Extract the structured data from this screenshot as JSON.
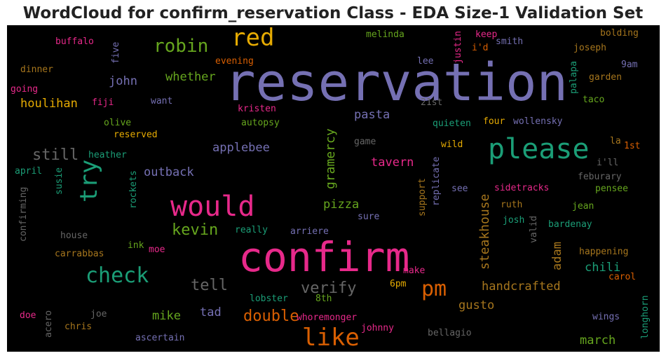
{
  "title": "WordCloud for confirm_reservation Class - EDA Size-1 Validation Set",
  "chart_data": {
    "type": "wordcloud",
    "title": "WordCloud for confirm_reservation Class - EDA Size-1 Validation Set",
    "background": "#000000",
    "colormap": [
      "#7570b3",
      "#d95f02",
      "#1b9e77",
      "#e7298a",
      "#66a61e",
      "#e6ab02",
      "#a6761d",
      "#666666"
    ],
    "words": [
      {
        "text": "reservation",
        "size": 74,
        "color": "#7570b3",
        "vertical": false
      },
      {
        "text": "confirm",
        "size": 58,
        "color": "#e7298a",
        "vertical": false
      },
      {
        "text": "please",
        "size": 40,
        "color": "#1b9e77",
        "vertical": false
      },
      {
        "text": "would",
        "size": 40,
        "color": "#e7298a",
        "vertical": false
      },
      {
        "text": "red",
        "size": 34,
        "color": "#e6ab02",
        "vertical": false
      },
      {
        "text": "like",
        "size": 34,
        "color": "#d95f02",
        "vertical": false
      },
      {
        "text": "try",
        "size": 34,
        "color": "#1b9e77",
        "vertical": true
      },
      {
        "text": "check",
        "size": 30,
        "color": "#1b9e77",
        "vertical": false
      },
      {
        "text": "pm",
        "size": 30,
        "color": "#d95f02",
        "vertical": false
      },
      {
        "text": "robin",
        "size": 26,
        "color": "#66a61e",
        "vertical": false
      },
      {
        "text": "still",
        "size": 22,
        "color": "#666666",
        "vertical": false
      },
      {
        "text": "tell",
        "size": 22,
        "color": "#666666",
        "vertical": false
      },
      {
        "text": "verify",
        "size": 22,
        "color": "#666666",
        "vertical": false
      },
      {
        "text": "kevin",
        "size": 22,
        "color": "#66a61e",
        "vertical": false
      },
      {
        "text": "double",
        "size": 22,
        "color": "#d95f02",
        "vertical": false
      },
      {
        "text": "gramercy",
        "size": 18,
        "color": "#66a61e",
        "vertical": true
      },
      {
        "text": "steakhouse",
        "size": 18,
        "color": "#a6761d",
        "vertical": true
      },
      {
        "text": "houlihan",
        "size": 17,
        "color": "#e6ab02",
        "vertical": false
      },
      {
        "text": "whether",
        "size": 17,
        "color": "#66a61e",
        "vertical": false
      },
      {
        "text": "john",
        "size": 17,
        "color": "#7570b3",
        "vertical": false
      },
      {
        "text": "pasta",
        "size": 17,
        "color": "#7570b3",
        "vertical": false
      },
      {
        "text": "applebee",
        "size": 17,
        "color": "#7570b3",
        "vertical": false
      },
      {
        "text": "tavern",
        "size": 17,
        "color": "#e7298a",
        "vertical": false
      },
      {
        "text": "outback",
        "size": 17,
        "color": "#7570b3",
        "vertical": false
      },
      {
        "text": "pizza",
        "size": 17,
        "color": "#66a61e",
        "vertical": false
      },
      {
        "text": "handcrafted",
        "size": 17,
        "color": "#a6761d",
        "vertical": false
      },
      {
        "text": "gusto",
        "size": 17,
        "color": "#a6761d",
        "vertical": false
      },
      {
        "text": "chili",
        "size": 17,
        "color": "#1b9e77",
        "vertical": false
      },
      {
        "text": "adam",
        "size": 17,
        "color": "#a6761d",
        "vertical": true
      },
      {
        "text": "mike",
        "size": 17,
        "color": "#66a61e",
        "vertical": false
      },
      {
        "text": "tad",
        "size": 17,
        "color": "#7570b3",
        "vertical": false
      },
      {
        "text": "march",
        "size": 17,
        "color": "#66a61e",
        "vertical": false
      },
      {
        "text": "buffalo",
        "size": 13,
        "color": "#e7298a",
        "vertical": false
      },
      {
        "text": "five",
        "size": 13,
        "color": "#7570b3",
        "vertical": true
      },
      {
        "text": "evening",
        "size": 13,
        "color": "#d95f02",
        "vertical": false
      },
      {
        "text": "melinda",
        "size": 13,
        "color": "#66a61e",
        "vertical": false
      },
      {
        "text": "justin",
        "size": 13,
        "color": "#e7298a",
        "vertical": true
      },
      {
        "text": "keep",
        "size": 13,
        "color": "#e7298a",
        "vertical": false
      },
      {
        "text": "i'd",
        "size": 13,
        "color": "#d95f02",
        "vertical": false
      },
      {
        "text": "smith",
        "size": 13,
        "color": "#7570b3",
        "vertical": false
      },
      {
        "text": "bolding",
        "size": 13,
        "color": "#a6761d",
        "vertical": false
      },
      {
        "text": "joseph",
        "size": 13,
        "color": "#a6761d",
        "vertical": false
      },
      {
        "text": "dinner",
        "size": 13,
        "color": "#a6761d",
        "vertical": false
      },
      {
        "text": "lee",
        "size": 13,
        "color": "#7570b3",
        "vertical": false
      },
      {
        "text": "9am",
        "size": 13,
        "color": "#7570b3",
        "vertical": false
      },
      {
        "text": "palapa",
        "size": 13,
        "color": "#1b9e77",
        "vertical": true
      },
      {
        "text": "garden",
        "size": 13,
        "color": "#a6761d",
        "vertical": false
      },
      {
        "text": "going",
        "size": 13,
        "color": "#e7298a",
        "vertical": false
      },
      {
        "text": "fiji",
        "size": 13,
        "color": "#e7298a",
        "vertical": false
      },
      {
        "text": "want",
        "size": 13,
        "color": "#7570b3",
        "vertical": false
      },
      {
        "text": "kristen",
        "size": 13,
        "color": "#e7298a",
        "vertical": false
      },
      {
        "text": "21st",
        "size": 13,
        "color": "#666666",
        "vertical": false
      },
      {
        "text": "taco",
        "size": 13,
        "color": "#66a61e",
        "vertical": false
      },
      {
        "text": "olive",
        "size": 13,
        "color": "#66a61e",
        "vertical": false
      },
      {
        "text": "autopsy",
        "size": 13,
        "color": "#66a61e",
        "vertical": false
      },
      {
        "text": "quieten",
        "size": 13,
        "color": "#1b9e77",
        "vertical": false
      },
      {
        "text": "four",
        "size": 13,
        "color": "#e6ab02",
        "vertical": false
      },
      {
        "text": "wollensky",
        "size": 13,
        "color": "#7570b3",
        "vertical": false
      },
      {
        "text": "reserved",
        "size": 13,
        "color": "#e6ab02",
        "vertical": false
      },
      {
        "text": "game",
        "size": 13,
        "color": "#666666",
        "vertical": false
      },
      {
        "text": "la",
        "size": 13,
        "color": "#a6761d",
        "vertical": false
      },
      {
        "text": "1st",
        "size": 13,
        "color": "#d95f02",
        "vertical": false
      },
      {
        "text": "heather",
        "size": 13,
        "color": "#1b9e77",
        "vertical": false
      },
      {
        "text": "wild",
        "size": 13,
        "color": "#e6ab02",
        "vertical": false
      },
      {
        "text": "i'll",
        "size": 13,
        "color": "#666666",
        "vertical": false
      },
      {
        "text": "april",
        "size": 13,
        "color": "#1b9e77",
        "vertical": false
      },
      {
        "text": "susie",
        "size": 13,
        "color": "#1b9e77",
        "vertical": true
      },
      {
        "text": "rockets",
        "size": 13,
        "color": "#1b9e77",
        "vertical": true
      },
      {
        "text": "support",
        "size": 13,
        "color": "#a6761d",
        "vertical": true
      },
      {
        "text": "replicate",
        "size": 13,
        "color": "#7570b3",
        "vertical": true
      },
      {
        "text": "feburary",
        "size": 13,
        "color": "#666666",
        "vertical": false
      },
      {
        "text": "confirming",
        "size": 13,
        "color": "#666666",
        "vertical": true
      },
      {
        "text": "see",
        "size": 13,
        "color": "#7570b3",
        "vertical": false
      },
      {
        "text": "sidetracks",
        "size": 13,
        "color": "#e7298a",
        "vertical": false
      },
      {
        "text": "pensee",
        "size": 13,
        "color": "#66a61e",
        "vertical": false
      },
      {
        "text": "sure",
        "size": 13,
        "color": "#7570b3",
        "vertical": false
      },
      {
        "text": "ruth",
        "size": 13,
        "color": "#a6761d",
        "vertical": false
      },
      {
        "text": "jean",
        "size": 13,
        "color": "#66a61e",
        "vertical": false
      },
      {
        "text": "josh",
        "size": 13,
        "color": "#1b9e77",
        "vertical": false
      },
      {
        "text": "bardenay",
        "size": 13,
        "color": "#1b9e77",
        "vertical": false
      },
      {
        "text": "valid",
        "size": 13,
        "color": "#666666",
        "vertical": true
      },
      {
        "text": "house",
        "size": 13,
        "color": "#666666",
        "vertical": false
      },
      {
        "text": "really",
        "size": 13,
        "color": "#1b9e77",
        "vertical": false
      },
      {
        "text": "arriere",
        "size": 13,
        "color": "#7570b3",
        "vertical": false
      },
      {
        "text": "carrabbas",
        "size": 13,
        "color": "#a6761d",
        "vertical": false
      },
      {
        "text": "ink",
        "size": 13,
        "color": "#66a61e",
        "vertical": false
      },
      {
        "text": "moe",
        "size": 13,
        "color": "#e7298a",
        "vertical": false
      },
      {
        "text": "happening",
        "size": 13,
        "color": "#a6761d",
        "vertical": false
      },
      {
        "text": "make",
        "size": 13,
        "color": "#e7298a",
        "vertical": false
      },
      {
        "text": "6pm",
        "size": 13,
        "color": "#e6ab02",
        "vertical": false
      },
      {
        "text": "carol",
        "size": 13,
        "color": "#d95f02",
        "vertical": false
      },
      {
        "text": "lobster",
        "size": 13,
        "color": "#1b9e77",
        "vertical": false
      },
      {
        "text": "8th",
        "size": 13,
        "color": "#66a61e",
        "vertical": false
      },
      {
        "text": "longhorn",
        "size": 13,
        "color": "#1b9e77",
        "vertical": true
      },
      {
        "text": "doe",
        "size": 13,
        "color": "#e7298a",
        "vertical": false
      },
      {
        "text": "joe",
        "size": 13,
        "color": "#666666",
        "vertical": false
      },
      {
        "text": "acero",
        "size": 13,
        "color": "#666666",
        "vertical": true
      },
      {
        "text": "whoremonger",
        "size": 13,
        "color": "#e7298a",
        "vertical": false
      },
      {
        "text": "wings",
        "size": 13,
        "color": "#7570b3",
        "vertical": false
      },
      {
        "text": "chris",
        "size": 13,
        "color": "#a6761d",
        "vertical": false
      },
      {
        "text": "johnny",
        "size": 13,
        "color": "#e7298a",
        "vertical": false
      },
      {
        "text": "ascertain",
        "size": 13,
        "color": "#7570b3",
        "vertical": false
      },
      {
        "text": "bellagio",
        "size": 13,
        "color": "#666666",
        "vertical": false
      }
    ]
  }
}
